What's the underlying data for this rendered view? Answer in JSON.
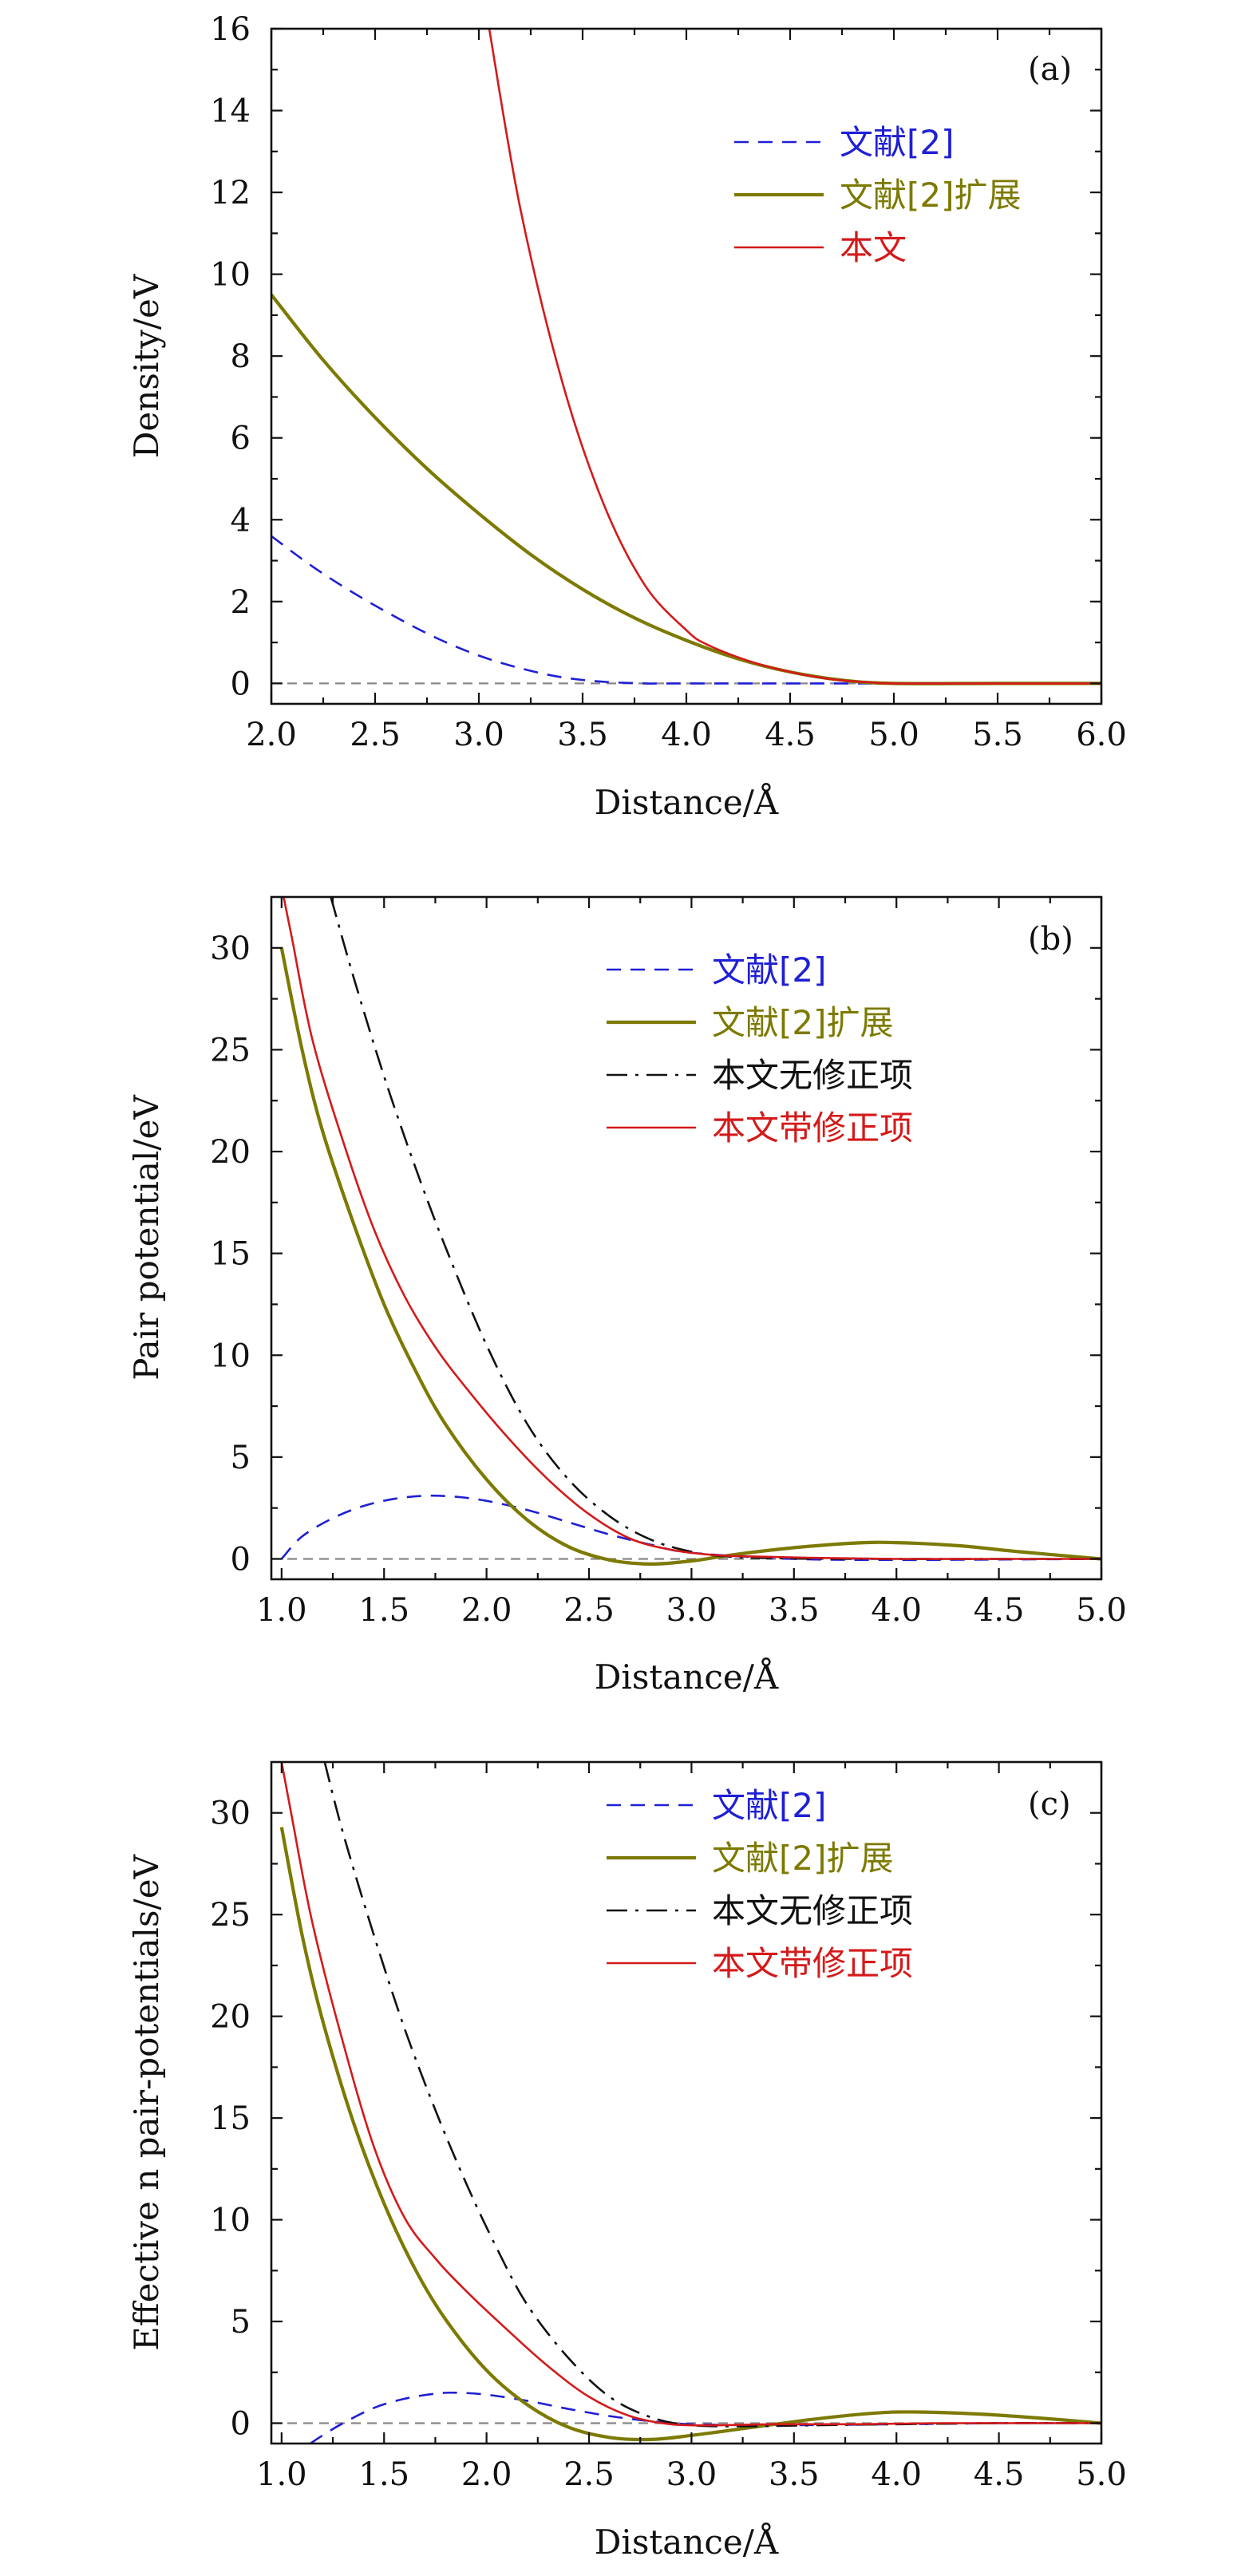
{
  "figure_labels": {
    "panel_a": {
      "tag": "(a)",
      "xlabel": "Distance/Å",
      "ylabel": "Density/eV"
    },
    "panel_b": {
      "tag": "(b)",
      "xlabel": "Distance/Å",
      "ylabel": "Pair potential/eV"
    },
    "panel_c": {
      "tag": "(c)",
      "xlabel": "Distance/Å",
      "ylabel": "Effective n pair-potentials/eV"
    }
  },
  "colors": {
    "blue": "#1f1fd6",
    "olive": "#7c7a00",
    "black": "#111111",
    "red": "#d41a1a",
    "zero_line": "#888888"
  },
  "chart_data": [
    {
      "id": "panel_a",
      "type": "line",
      "tag": "(a)",
      "title": "",
      "xlabel": "Distance/Å",
      "ylabel": "Density/eV",
      "xlim": [
        2.0,
        6.0
      ],
      "ylim": [
        -0.5,
        16
      ],
      "xticks": [
        2.0,
        2.5,
        3.0,
        3.5,
        4.0,
        4.5,
        5.0,
        5.5,
        6.0
      ],
      "xtick_labels": [
        "2.0",
        "2.5",
        "3.0",
        "3.5",
        "4.0",
        "4.5",
        "5.0",
        "5.5",
        "6.0"
      ],
      "yticks": [
        0,
        2,
        4,
        6,
        8,
        10,
        12,
        14,
        16
      ],
      "ytick_labels": [
        "0",
        "2",
        "4",
        "6",
        "8",
        "10",
        "12",
        "14",
        "16"
      ],
      "legend_position": "top-right",
      "series": [
        {
          "name": "文献[2]",
          "color": "#1f1fd6",
          "style": "dashed",
          "width": 2.6,
          "x": [
            2.0,
            2.2,
            2.4,
            2.6,
            2.8,
            3.0,
            3.2,
            3.4,
            3.6,
            3.8,
            3.9,
            4.1,
            4.5,
            5.0,
            5.5,
            6.0
          ],
          "y": [
            3.6,
            2.85,
            2.2,
            1.62,
            1.1,
            0.68,
            0.37,
            0.15,
            0.04,
            0.0,
            0.0,
            0.0,
            0.0,
            0.0,
            0.0,
            0.0
          ]
        },
        {
          "name": "文献[2]扩展",
          "color": "#7c7a00",
          "style": "solid",
          "width": 4.2,
          "x": [
            2.0,
            2.25,
            2.5,
            2.75,
            3.0,
            3.25,
            3.5,
            3.75,
            4.0,
            4.25,
            4.5,
            4.75,
            5.0,
            5.5,
            6.0
          ],
          "y": [
            9.5,
            7.9,
            6.5,
            5.25,
            4.15,
            3.15,
            2.3,
            1.6,
            1.05,
            0.6,
            0.28,
            0.08,
            0.0,
            0.0,
            0.0
          ]
        },
        {
          "name": "本文",
          "color": "#d41a1a",
          "style": "solid",
          "width": 2.6,
          "x": [
            3.05,
            3.2,
            3.4,
            3.6,
            3.8,
            4.0,
            4.1,
            4.3,
            4.5,
            4.7,
            4.9,
            5.0,
            5.5,
            6.0
          ],
          "y": [
            16.0,
            11.6,
            7.4,
            4.4,
            2.4,
            1.3,
            0.95,
            0.55,
            0.28,
            0.1,
            0.02,
            0.0,
            0.0,
            0.0
          ]
        }
      ]
    },
    {
      "id": "panel_b",
      "type": "line",
      "tag": "(b)",
      "title": "",
      "xlabel": "Distance/Å",
      "ylabel": "Pair potential/eV",
      "xlim": [
        0.95,
        5.0
      ],
      "ylim": [
        -1,
        32.5
      ],
      "xticks": [
        1.0,
        1.5,
        2.0,
        2.5,
        3.0,
        3.5,
        4.0,
        4.5,
        5.0
      ],
      "xtick_labels": [
        "1.0",
        "1.5",
        "2.0",
        "2.5",
        "3.0",
        "3.5",
        "4.0",
        "4.5",
        "5.0"
      ],
      "yticks": [
        0,
        5,
        10,
        15,
        20,
        25,
        30
      ],
      "ytick_labels": [
        "0",
        "5",
        "10",
        "15",
        "20",
        "25",
        "30"
      ],
      "legend_position": "top-right",
      "series": [
        {
          "name": "文献[2]",
          "color": "#1f1fd6",
          "style": "dashed",
          "width": 2.6,
          "x": [
            1.0,
            1.1,
            1.25,
            1.4,
            1.55,
            1.7,
            1.85,
            2.0,
            2.2,
            2.4,
            2.6,
            2.8,
            3.0,
            3.5,
            4.0,
            4.5,
            5.0
          ],
          "y": [
            0.0,
            1.1,
            2.0,
            2.6,
            2.95,
            3.1,
            3.05,
            2.85,
            2.4,
            1.8,
            1.2,
            0.7,
            0.3,
            0.0,
            -0.05,
            -0.03,
            0.0
          ]
        },
        {
          "name": "文献[2]扩展",
          "color": "#7c7a00",
          "style": "solid",
          "width": 4.2,
          "x": [
            1.0,
            1.1,
            1.2,
            1.35,
            1.5,
            1.65,
            1.8,
            2.0,
            2.2,
            2.4,
            2.6,
            2.8,
            3.0,
            3.2,
            3.5,
            3.8,
            4.0,
            4.3,
            4.6,
            5.0
          ],
          "y": [
            30.0,
            25.0,
            21.0,
            16.5,
            12.5,
            9.3,
            6.6,
            3.9,
            1.9,
            0.6,
            -0.05,
            -0.25,
            -0.1,
            0.2,
            0.55,
            0.78,
            0.8,
            0.65,
            0.35,
            0.0
          ]
        },
        {
          "name": "本文无修正项",
          "color": "#111111",
          "style": "dashdot",
          "width": 2.6,
          "x": [
            1.24,
            1.35,
            1.5,
            1.65,
            1.8,
            2.0,
            2.2,
            2.4,
            2.6,
            2.8,
            3.0,
            3.2,
            3.5,
            4.0,
            4.5,
            5.0
          ],
          "y": [
            32.5,
            28.6,
            23.7,
            19.3,
            15.3,
            10.5,
            6.6,
            3.9,
            2.1,
            0.95,
            0.35,
            0.1,
            0.02,
            0.0,
            0.0,
            0.0
          ]
        },
        {
          "name": "本文带修正项",
          "color": "#d41a1a",
          "style": "solid",
          "width": 2.6,
          "x": [
            1.0,
            1.05,
            1.15,
            1.3,
            1.45,
            1.6,
            1.75,
            1.9,
            2.1,
            2.3,
            2.5,
            2.7,
            2.9,
            3.1,
            3.3,
            3.6,
            4.0,
            4.5,
            5.0
          ],
          "y": [
            33.0,
            30.5,
            25.5,
            20.5,
            16.2,
            12.9,
            10.4,
            8.4,
            6.0,
            3.9,
            2.2,
            1.0,
            0.45,
            0.2,
            0.12,
            0.05,
            0.0,
            0.0,
            0.0
          ]
        }
      ]
    },
    {
      "id": "panel_c",
      "type": "line",
      "tag": "(c)",
      "title": "",
      "xlabel": "Distance/Å",
      "ylabel": "Effective n pair-potentials/eV",
      "xlim": [
        0.95,
        5.0
      ],
      "ylim": [
        -1,
        32.5
      ],
      "xticks": [
        1.0,
        1.5,
        2.0,
        2.5,
        3.0,
        3.5,
        4.0,
        4.5,
        5.0
      ],
      "xtick_labels": [
        "1.0",
        "1.5",
        "2.0",
        "2.5",
        "3.0",
        "3.5",
        "4.0",
        "4.5",
        "5.0"
      ],
      "yticks": [
        0,
        5,
        10,
        15,
        20,
        25,
        30
      ],
      "ytick_labels": [
        "0",
        "5",
        "10",
        "15",
        "20",
        "25",
        "30"
      ],
      "legend_position": "top-right",
      "series": [
        {
          "name": "文献[2]",
          "color": "#1f1fd6",
          "style": "dashed",
          "width": 2.6,
          "x": [
            1.14,
            1.2,
            1.3,
            1.45,
            1.6,
            1.75,
            1.85,
            2.0,
            2.2,
            2.4,
            2.6,
            2.8,
            3.0,
            3.4,
            4.0,
            4.5,
            5.0
          ],
          "y": [
            -1.0,
            -0.6,
            0.0,
            0.75,
            1.2,
            1.45,
            1.5,
            1.4,
            1.1,
            0.7,
            0.35,
            0.1,
            -0.05,
            -0.1,
            -0.05,
            0.0,
            0.0
          ]
        },
        {
          "name": "文献[2]扩展",
          "color": "#7c7a00",
          "style": "solid",
          "width": 4.2,
          "x": [
            1.0,
            1.1,
            1.2,
            1.35,
            1.5,
            1.65,
            1.8,
            2.0,
            2.2,
            2.4,
            2.6,
            2.8,
            3.0,
            3.3,
            3.6,
            3.9,
            4.1,
            4.4,
            4.7,
            5.0
          ],
          "y": [
            29.3,
            24.0,
            19.8,
            14.8,
            10.8,
            7.6,
            5.1,
            2.6,
            0.9,
            -0.2,
            -0.7,
            -0.8,
            -0.6,
            -0.2,
            0.2,
            0.5,
            0.55,
            0.45,
            0.25,
            0.0
          ]
        },
        {
          "name": "本文无修正项",
          "color": "#111111",
          "style": "dashdot",
          "width": 2.6,
          "x": [
            1.21,
            1.3,
            1.45,
            1.6,
            1.75,
            1.9,
            2.05,
            2.2,
            2.4,
            2.6,
            2.8,
            3.0,
            3.3,
            3.6,
            4.0,
            4.5,
            5.0
          ],
          "y": [
            32.5,
            29.0,
            24.0,
            19.4,
            15.4,
            11.8,
            8.6,
            5.8,
            3.2,
            1.3,
            0.3,
            -0.1,
            -0.15,
            -0.1,
            -0.05,
            0.0,
            0.0
          ]
        },
        {
          "name": "本文带修正项",
          "color": "#d41a1a",
          "style": "solid",
          "width": 2.6,
          "x": [
            1.0,
            1.05,
            1.15,
            1.3,
            1.45,
            1.6,
            1.75,
            1.9,
            2.1,
            2.3,
            2.5,
            2.7,
            2.9,
            3.1,
            3.4,
            3.8,
            4.2,
            4.6,
            5.0
          ],
          "y": [
            32.5,
            29.8,
            24.6,
            18.7,
            13.6,
            10.1,
            8.1,
            6.5,
            4.6,
            2.8,
            1.3,
            0.35,
            -0.05,
            -0.1,
            -0.05,
            -0.05,
            0.0,
            0.0,
            0.0
          ]
        }
      ]
    }
  ]
}
